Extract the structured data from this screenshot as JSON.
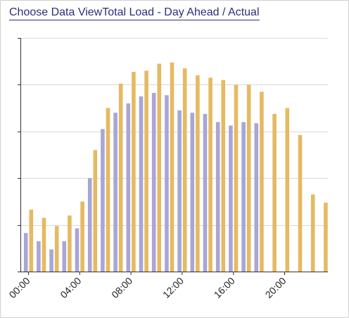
{
  "header": {
    "choose_label": "Choose Data View",
    "chart_title": "Total Load - Day Ahead / Actual"
  },
  "colors": {
    "actual": "#a7a6d4",
    "day_ahead": "#e6b962",
    "grid": "#d9d9d9",
    "axis": "#333333"
  },
  "chart_data": {
    "type": "bar",
    "title": "Total Load - Day Ahead / Actual",
    "categories": [
      "00:00",
      "01:00",
      "02:00",
      "03:00",
      "04:00",
      "05:00",
      "06:00",
      "07:00",
      "08:00",
      "09:00",
      "10:00",
      "11:00",
      "12:00",
      "13:00",
      "14:00",
      "15:00",
      "16:00",
      "17:00",
      "18:00",
      "19:00",
      "20:00",
      "21:00",
      "22:00",
      "23:00"
    ],
    "x_tick_labels": [
      "00:00",
      "04:00",
      "08:00",
      "12:00",
      "16:00",
      "20:00"
    ],
    "ylim": [
      0,
      100
    ],
    "y_tick_values": [
      0,
      20,
      40,
      60,
      80,
      100
    ],
    "grid": true,
    "series": [
      {
        "key": "actual",
        "values": [
          16.5,
          13,
          9.5,
          13,
          18.5,
          40,
          61,
          68,
          72,
          75,
          76.5,
          75.5,
          69,
          68,
          67.5,
          64,
          62.5,
          64,
          63.5,
          null,
          null,
          null,
          null,
          null
        ]
      },
      {
        "key": "day_ahead",
        "values": [
          26.5,
          23,
          19.5,
          24,
          30,
          52,
          70,
          80.5,
          85.5,
          86,
          89,
          89.5,
          87,
          84,
          83,
          82,
          80,
          80,
          77,
          67.5,
          70,
          58.5,
          33,
          29.5
        ]
      }
    ]
  }
}
